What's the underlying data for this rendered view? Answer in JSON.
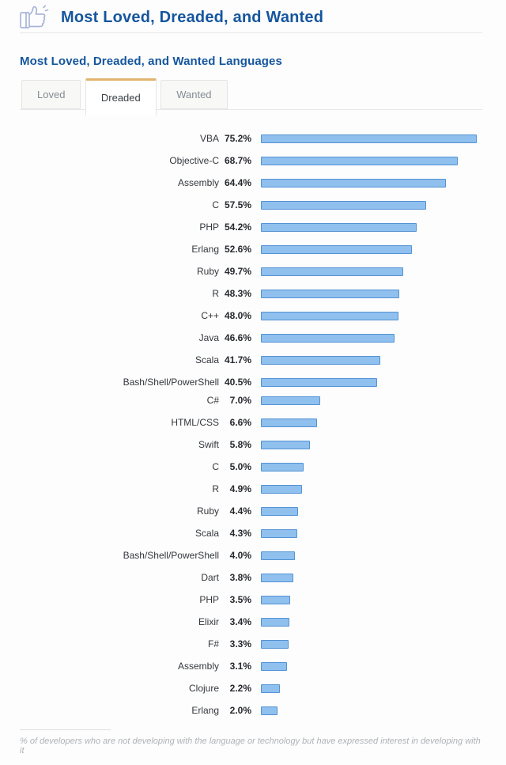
{
  "header": {
    "title": "Most Loved, Dreaded, and Wanted",
    "icon": "thumbs-up-icon"
  },
  "section": {
    "title": "Most Loved, Dreaded, and Wanted Languages"
  },
  "tabs": [
    {
      "label": "Loved",
      "active": false
    },
    {
      "label": "Dreaded",
      "active": true
    },
    {
      "label": "Wanted",
      "active": false
    }
  ],
  "footnote": "% of developers who are not developing with the language or technology but have expressed interest in developing with it",
  "colors": {
    "title_blue": "#15569e",
    "bar_fill": "#8fc0ee",
    "bar_border": "#5492d4",
    "active_tab_accent": "#e2b46f",
    "inactive_tab_bg": "#f8f8f6",
    "tab_border": "#e5e5e3",
    "footnote_gray": "#aeb3b8"
  },
  "chart_data": {
    "type": "bar",
    "orientation": "horizontal",
    "title": "Most Loved, Dreaded, and Wanted Languages",
    "active_tab": "Dreaded",
    "value_unit": "%",
    "legend": "none",
    "grid": false,
    "layout_note": "value labels shown beside category names; bars drawn at two visual scales: group 1 approx 3.63 px per percent, group 2 approx 10.7 px per percent",
    "rows": [
      {
        "label": "VBA",
        "value": 75.2,
        "pct": "75.2%",
        "group": 1
      },
      {
        "label": "Objective-C",
        "value": 68.7,
        "pct": "68.7%",
        "group": 1
      },
      {
        "label": "Assembly",
        "value": 64.4,
        "pct": "64.4%",
        "group": 1
      },
      {
        "label": "C",
        "value": 57.5,
        "pct": "57.5%",
        "group": 1
      },
      {
        "label": "PHP",
        "value": 54.2,
        "pct": "54.2%",
        "group": 1
      },
      {
        "label": "Erlang",
        "value": 52.6,
        "pct": "52.6%",
        "group": 1
      },
      {
        "label": "Ruby",
        "value": 49.7,
        "pct": "49.7%",
        "group": 1
      },
      {
        "label": "R",
        "value": 48.3,
        "pct": "48.3%",
        "group": 1
      },
      {
        "label": "C++",
        "value": 48.0,
        "pct": "48.0%",
        "group": 1
      },
      {
        "label": "Java",
        "value": 46.6,
        "pct": "46.6%",
        "group": 1
      },
      {
        "label": "Scala",
        "value": 41.7,
        "pct": "41.7%",
        "group": 1
      },
      {
        "label": "Bash/Shell/PowerShell",
        "value": 40.5,
        "pct": "40.5%",
        "group": 1
      },
      {
        "label": "C#",
        "value": 7.0,
        "pct": "7.0%",
        "group": 2
      },
      {
        "label": "HTML/CSS",
        "value": 6.6,
        "pct": "6.6%",
        "group": 2
      },
      {
        "label": "Swift",
        "value": 5.8,
        "pct": "5.8%",
        "group": 2
      },
      {
        "label": "C",
        "value": 5.0,
        "pct": "5.0%",
        "group": 2
      },
      {
        "label": "R",
        "value": 4.9,
        "pct": "4.9%",
        "group": 2
      },
      {
        "label": "Ruby",
        "value": 4.4,
        "pct": "4.4%",
        "group": 2
      },
      {
        "label": "Scala",
        "value": 4.3,
        "pct": "4.3%",
        "group": 2
      },
      {
        "label": "Bash/Shell/PowerShell",
        "value": 4.0,
        "pct": "4.0%",
        "group": 2
      },
      {
        "label": "Dart",
        "value": 3.8,
        "pct": "3.8%",
        "group": 2
      },
      {
        "label": "PHP",
        "value": 3.5,
        "pct": "3.5%",
        "group": 2
      },
      {
        "label": "Elixir",
        "value": 3.4,
        "pct": "3.4%",
        "group": 2
      },
      {
        "label": "F#",
        "value": 3.3,
        "pct": "3.3%",
        "group": 2
      },
      {
        "label": "Assembly",
        "value": 3.1,
        "pct": "3.1%",
        "group": 2
      },
      {
        "label": "Clojure",
        "value": 2.2,
        "pct": "2.2%",
        "group": 2
      },
      {
        "label": "Erlang",
        "value": 2.0,
        "pct": "2.0%",
        "group": 2
      }
    ]
  }
}
